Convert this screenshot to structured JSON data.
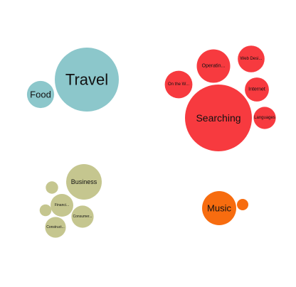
{
  "chart_data": {
    "type": "bubble",
    "groups": [
      {
        "name": "",
        "color": "#8cc7cb",
        "bubbles": [
          {
            "label": "Travel",
            "value": 100
          },
          {
            "label": "Food",
            "value": 18
          }
        ]
      },
      {
        "name": "",
        "color": "#f73a3f",
        "bubbles": [
          {
            "label": "Searching",
            "value": 100
          },
          {
            "label": "Operatin...",
            "value": 25
          },
          {
            "label": "Web Desi...",
            "value": 16
          },
          {
            "label": "On the W...",
            "value": 17
          },
          {
            "label": "Internet",
            "value": 13
          },
          {
            "label": "Languages",
            "value": 11
          }
        ]
      },
      {
        "name": "",
        "color": "#c5c68f",
        "bubbles": [
          {
            "label": "Business",
            "value": 100
          },
          {
            "label": "Financi...",
            "value": 41
          },
          {
            "label": "Consumer...",
            "value": 39
          },
          {
            "label": "Construct...",
            "value": 34
          },
          {
            "label": "",
            "value": 12
          },
          {
            "label": "",
            "value": 11
          }
        ]
      },
      {
        "name": "",
        "color": "#f76c0f",
        "bubbles": [
          {
            "label": "Music",
            "value": 100
          },
          {
            "label": "",
            "value": 11
          }
        ]
      }
    ]
  }
}
